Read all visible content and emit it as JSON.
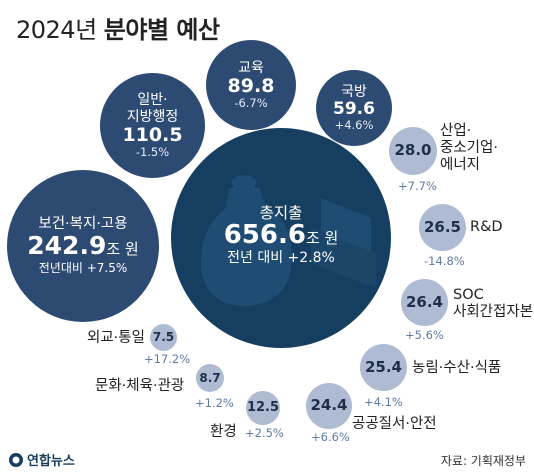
{
  "title": {
    "normal": "2024년 ",
    "bold": "분야별 예산"
  },
  "unit": "조 원",
  "total": {
    "label": "총지출",
    "value": "656.6",
    "change": "전년 대비 +2.8%"
  },
  "categories": {
    "health": {
      "name": "보건·복지·고용",
      "value": "242.9",
      "change": "전년대비 +7.5%"
    },
    "general": {
      "name1": "일반·",
      "name2": "지방행정",
      "value": "110.5",
      "change": "-1.5%"
    },
    "education": {
      "name": "교육",
      "value": "89.8",
      "change": "-6.7%"
    },
    "defense": {
      "name": "국방",
      "value": "59.6",
      "change": "+4.6%"
    },
    "industry": {
      "name1": "산업·",
      "name2": "중소기업·",
      "name3": "에너지",
      "value": "28.0",
      "change": "+7.7%"
    },
    "rnd": {
      "name": "R&D",
      "value": "26.5",
      "change": "-14.8%"
    },
    "soc": {
      "name1": "SOC",
      "name2": "사회간접자본",
      "value": "26.4",
      "change": "+5.6%"
    },
    "agri": {
      "name": "농림·수산·식품",
      "value": "25.4",
      "change": "+4.1%"
    },
    "safety": {
      "name": "공공질서·안전",
      "value": "24.4",
      "change": "+6.6%"
    },
    "env": {
      "name": "환경",
      "value": "12.5",
      "change": "+2.5%"
    },
    "culture": {
      "name": "문화·체육·관광",
      "value": "8.7",
      "change": "+1.2%"
    },
    "foreign": {
      "name": "외교·통일",
      "value": "7.5",
      "change": "+17.2%"
    }
  },
  "footer": {
    "logo": "연합뉴스",
    "source": "자료: 기획재정부"
  },
  "colors": {
    "dark": "#2d4a72",
    "main": "#163e60",
    "light": "#aebbd3"
  },
  "icons": [
    "money-bag-icon",
    "banknote-stack-icon",
    "yonhap-logo-icon"
  ]
}
